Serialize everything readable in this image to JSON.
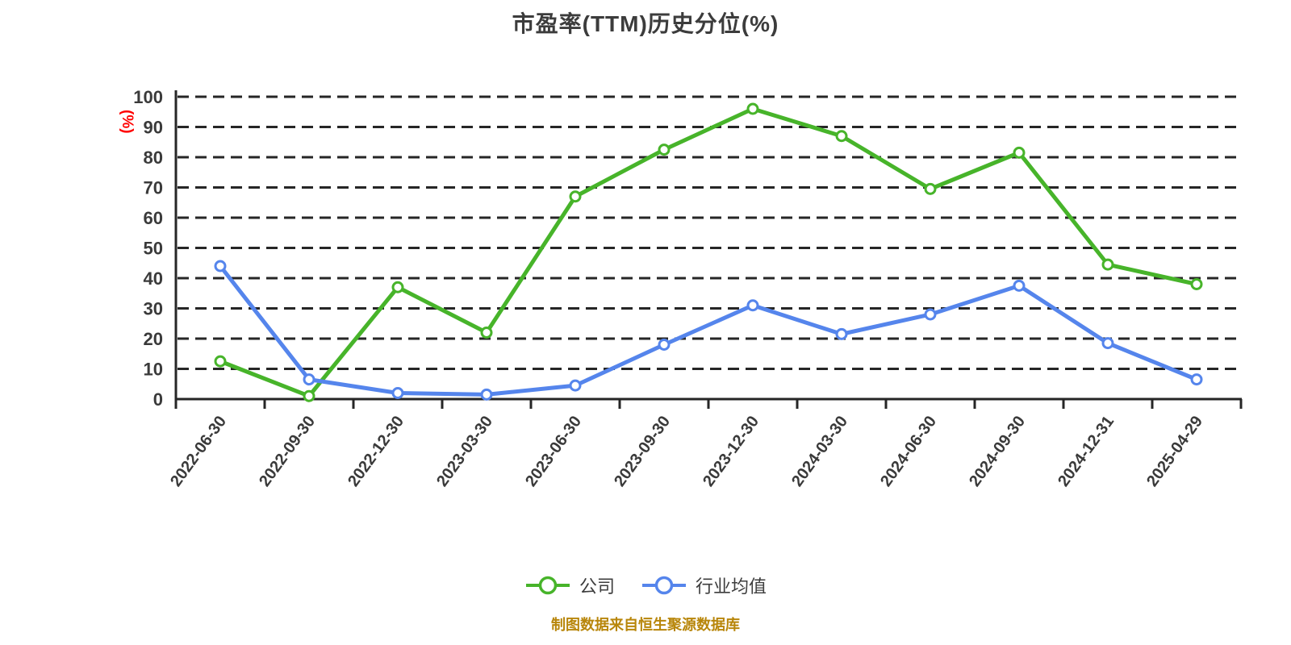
{
  "chart_data": {
    "type": "line",
    "title": "市盈率(TTM)历史分位(%)",
    "y_axis": {
      "unit_label": "(%)",
      "min": 0,
      "max": 100,
      "ticks": [
        0,
        10,
        20,
        30,
        40,
        50,
        60,
        70,
        80,
        90,
        100
      ]
    },
    "categories": [
      "2022-06-30",
      "2022-09-30",
      "2022-12-30",
      "2023-03-30",
      "2023-06-30",
      "2023-09-30",
      "2023-12-30",
      "2024-03-30",
      "2024-06-30",
      "2024-09-30",
      "2024-12-31",
      "2025-04-29"
    ],
    "series": [
      {
        "key": "company",
        "name": "公司",
        "color": "#47b42a",
        "values": [
          12.5,
          1,
          37,
          22,
          67,
          82.5,
          96,
          87,
          69.5,
          81.5,
          44.5,
          38
        ]
      },
      {
        "key": "industry",
        "name": "行业均值",
        "color": "#5585ec",
        "values": [
          44,
          6.5,
          2,
          1.5,
          4.5,
          18,
          31,
          21.5,
          28,
          37.5,
          18.5,
          6.5
        ]
      }
    ],
    "legend_position": "bottom",
    "grid": {
      "show": true,
      "style": "dashed"
    },
    "ylim": [
      0,
      100
    ]
  },
  "footer": {
    "source_note": "制图数据来自恒生聚源数据库",
    "color": "#b8860b"
  },
  "styles": {
    "background": "#ffffff",
    "title_color": "#3c3c3c",
    "axis_color": "#262626",
    "label_color": "#3a3a3a",
    "unit_label_color": "#ff0000",
    "marker_fill": "#ffffff"
  }
}
